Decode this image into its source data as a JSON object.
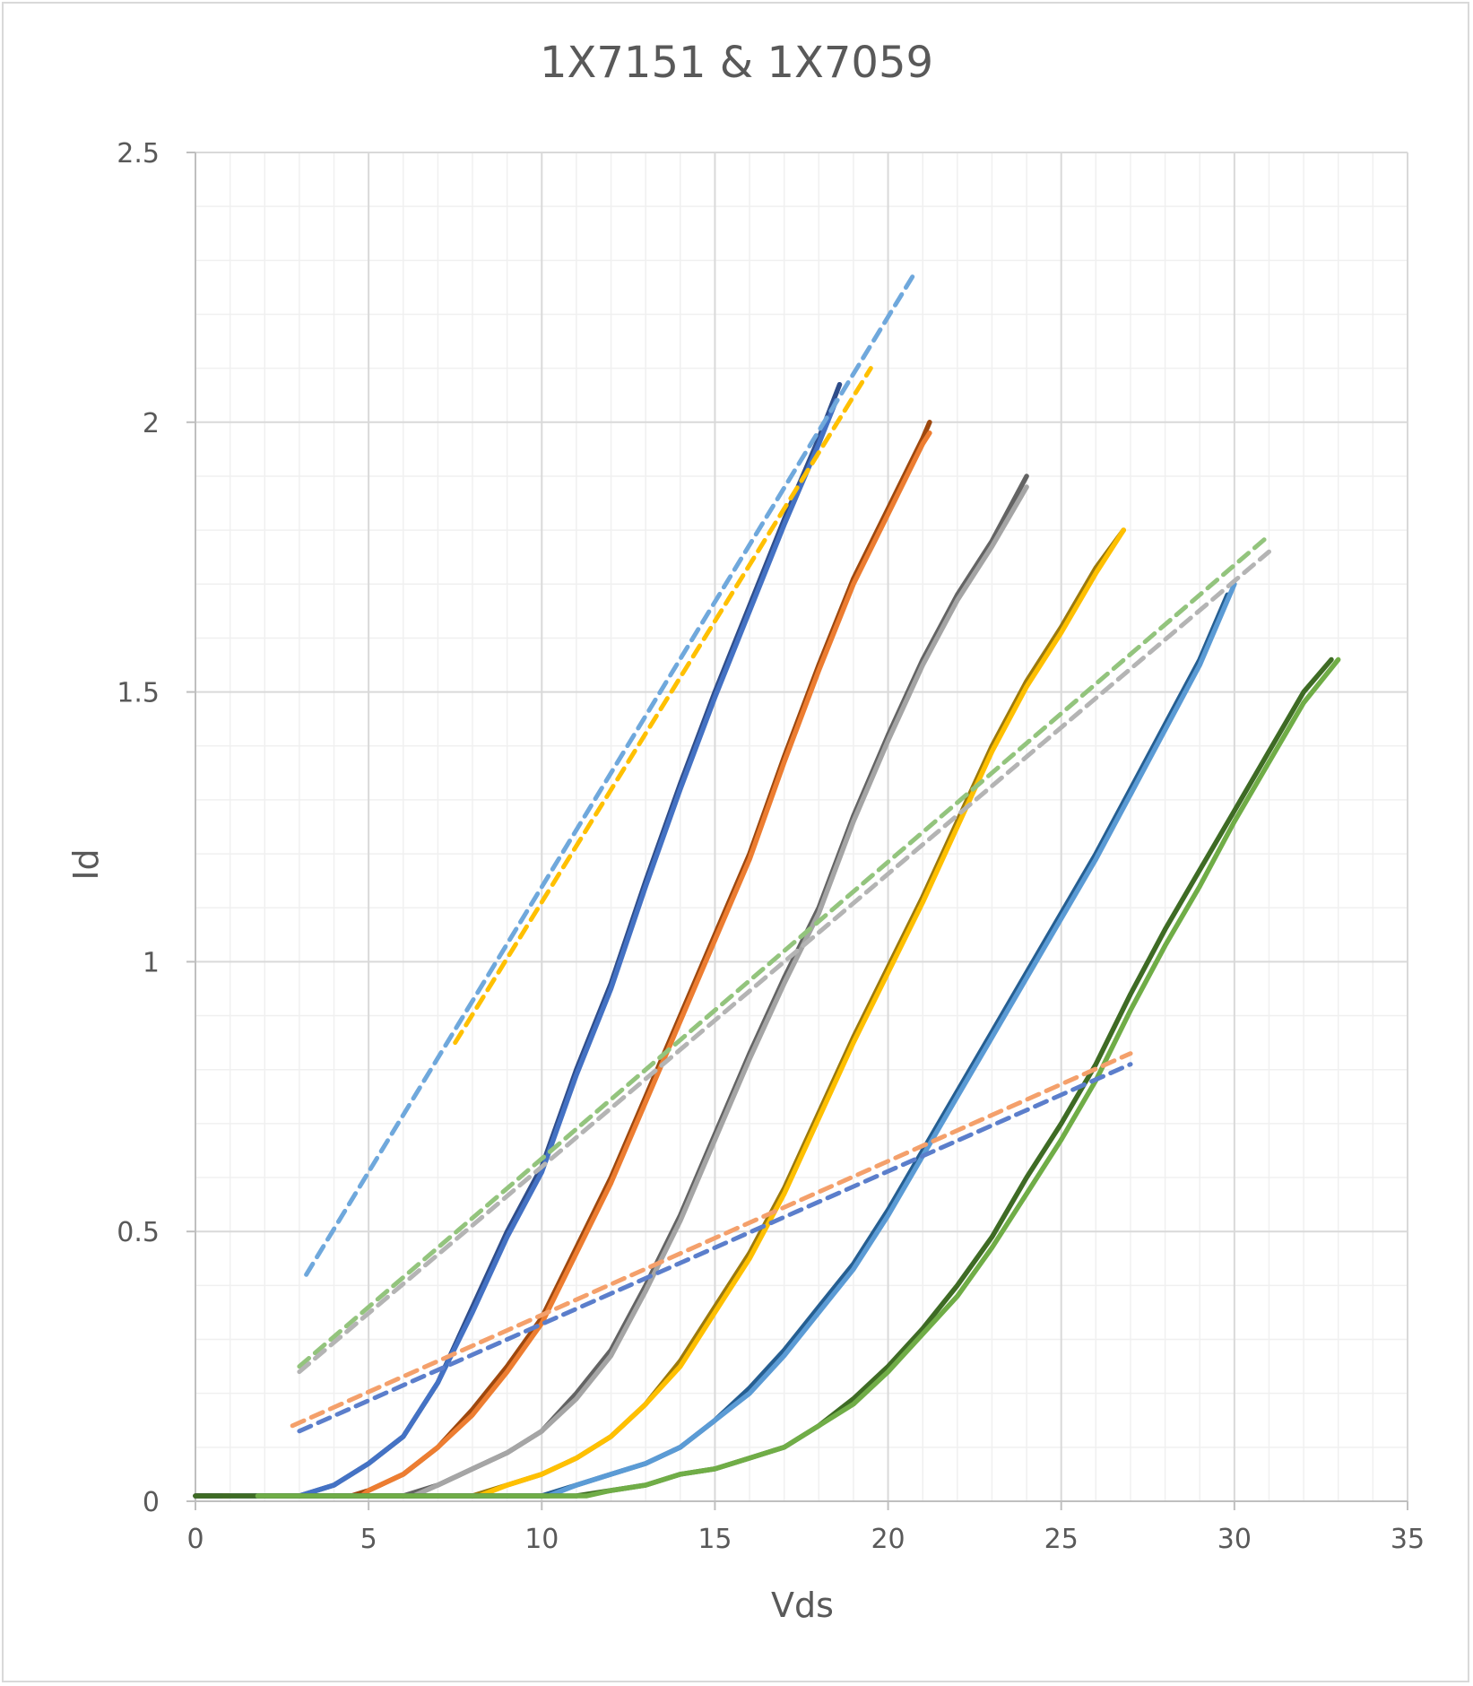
{
  "chart_data": {
    "type": "line",
    "title": "1X7151 & 1X7059",
    "xlabel": "Vds",
    "ylabel": "Id",
    "xlim": [
      0,
      35
    ],
    "ylim": [
      0,
      2.5
    ],
    "xticks": [
      "0",
      "5",
      "10",
      "15",
      "20",
      "25",
      "30",
      "35"
    ],
    "yticks": [
      "0",
      "0.5",
      "1",
      "1.5",
      "2",
      "2.5"
    ],
    "grid": true,
    "legend": "none",
    "series": [
      {
        "color": "#2f4d8a",
        "dash": false,
        "points": [
          [
            0,
            0.01
          ],
          [
            3,
            0.01
          ],
          [
            4,
            0.03
          ],
          [
            5,
            0.07
          ],
          [
            6,
            0.12
          ],
          [
            7,
            0.22
          ],
          [
            8,
            0.36
          ],
          [
            9,
            0.5
          ],
          [
            10,
            0.62
          ],
          [
            11,
            0.8
          ],
          [
            12,
            0.96
          ],
          [
            13,
            1.15
          ],
          [
            14,
            1.33
          ],
          [
            15,
            1.5
          ],
          [
            16,
            1.66
          ],
          [
            17,
            1.82
          ],
          [
            18,
            1.97
          ],
          [
            18.6,
            2.07
          ]
        ]
      },
      {
        "color": "#4472c4",
        "dash": false,
        "points": [
          [
            1,
            0.01
          ],
          [
            3,
            0.01
          ],
          [
            4,
            0.03
          ],
          [
            5,
            0.07
          ],
          [
            6,
            0.12
          ],
          [
            7,
            0.22
          ],
          [
            8,
            0.35
          ],
          [
            9,
            0.49
          ],
          [
            10,
            0.61
          ],
          [
            11,
            0.79
          ],
          [
            12,
            0.95
          ],
          [
            13,
            1.14
          ],
          [
            14,
            1.32
          ],
          [
            15,
            1.49
          ],
          [
            16,
            1.65
          ],
          [
            17,
            1.81
          ],
          [
            18,
            1.96
          ],
          [
            18.5,
            2.04
          ]
        ]
      },
      {
        "color": "#9e480e",
        "dash": false,
        "points": [
          [
            0,
            0.01
          ],
          [
            4.5,
            0.01
          ],
          [
            5,
            0.02
          ],
          [
            6,
            0.05
          ],
          [
            7,
            0.1
          ],
          [
            8,
            0.17
          ],
          [
            9,
            0.25
          ],
          [
            10,
            0.34
          ],
          [
            11,
            0.47
          ],
          [
            12,
            0.6
          ],
          [
            13,
            0.75
          ],
          [
            14,
            0.9
          ],
          [
            15,
            1.05
          ],
          [
            16,
            1.2
          ],
          [
            17,
            1.38
          ],
          [
            18,
            1.55
          ],
          [
            19,
            1.71
          ],
          [
            20,
            1.84
          ],
          [
            21,
            1.97
          ],
          [
            21.2,
            2.0
          ]
        ]
      },
      {
        "color": "#ed7d31",
        "dash": false,
        "points": [
          [
            0.5,
            0.01
          ],
          [
            4.8,
            0.01
          ],
          [
            5,
            0.02
          ],
          [
            6,
            0.05
          ],
          [
            7,
            0.1
          ],
          [
            8,
            0.16
          ],
          [
            9,
            0.24
          ],
          [
            10,
            0.33
          ],
          [
            11,
            0.46
          ],
          [
            12,
            0.59
          ],
          [
            13,
            0.74
          ],
          [
            14,
            0.89
          ],
          [
            15,
            1.04
          ],
          [
            16,
            1.19
          ],
          [
            17,
            1.37
          ],
          [
            18,
            1.54
          ],
          [
            19,
            1.7
          ],
          [
            20,
            1.83
          ],
          [
            21,
            1.96
          ],
          [
            21.2,
            1.98
          ]
        ]
      },
      {
        "color": "#636363",
        "dash": false,
        "points": [
          [
            0,
            0.01
          ],
          [
            6,
            0.01
          ],
          [
            7,
            0.03
          ],
          [
            8,
            0.06
          ],
          [
            9,
            0.09
          ],
          [
            10,
            0.13
          ],
          [
            11,
            0.2
          ],
          [
            12,
            0.28
          ],
          [
            13,
            0.4
          ],
          [
            14,
            0.53
          ],
          [
            15,
            0.68
          ],
          [
            16,
            0.83
          ],
          [
            17,
            0.97
          ],
          [
            18,
            1.1
          ],
          [
            19,
            1.27
          ],
          [
            20,
            1.42
          ],
          [
            21,
            1.56
          ],
          [
            22,
            1.68
          ],
          [
            23,
            1.78
          ],
          [
            24,
            1.9
          ]
        ]
      },
      {
        "color": "#a5a5a5",
        "dash": false,
        "points": [
          [
            0.5,
            0.01
          ],
          [
            6.3,
            0.01
          ],
          [
            7,
            0.03
          ],
          [
            8,
            0.06
          ],
          [
            9,
            0.09
          ],
          [
            10,
            0.13
          ],
          [
            11,
            0.19
          ],
          [
            12,
            0.27
          ],
          [
            13,
            0.39
          ],
          [
            14,
            0.52
          ],
          [
            15,
            0.67
          ],
          [
            16,
            0.82
          ],
          [
            17,
            0.96
          ],
          [
            18,
            1.09
          ],
          [
            19,
            1.26
          ],
          [
            20,
            1.41
          ],
          [
            21,
            1.55
          ],
          [
            22,
            1.67
          ],
          [
            23,
            1.77
          ],
          [
            24,
            1.88
          ]
        ]
      },
      {
        "color": "#9c7a0c",
        "dash": false,
        "points": [
          [
            0,
            0.01
          ],
          [
            8,
            0.01
          ],
          [
            9,
            0.03
          ],
          [
            10,
            0.05
          ],
          [
            11,
            0.08
          ],
          [
            12,
            0.12
          ],
          [
            13,
            0.18
          ],
          [
            14,
            0.26
          ],
          [
            15,
            0.36
          ],
          [
            16,
            0.46
          ],
          [
            17,
            0.58
          ],
          [
            18,
            0.72
          ],
          [
            19,
            0.86
          ],
          [
            20,
            0.99
          ],
          [
            21,
            1.12
          ],
          [
            22,
            1.26
          ],
          [
            23,
            1.4
          ],
          [
            24,
            1.52
          ],
          [
            25,
            1.62
          ],
          [
            26,
            1.73
          ],
          [
            26.8,
            1.8
          ]
        ]
      },
      {
        "color": "#ffc000",
        "dash": false,
        "points": [
          [
            0.8,
            0.01
          ],
          [
            8.2,
            0.01
          ],
          [
            9,
            0.03
          ],
          [
            10,
            0.05
          ],
          [
            11,
            0.08
          ],
          [
            12,
            0.12
          ],
          [
            13,
            0.18
          ],
          [
            14,
            0.25
          ],
          [
            15,
            0.35
          ],
          [
            16,
            0.45
          ],
          [
            17,
            0.57
          ],
          [
            18,
            0.71
          ],
          [
            19,
            0.85
          ],
          [
            20,
            0.98
          ],
          [
            21,
            1.11
          ],
          [
            22,
            1.25
          ],
          [
            23,
            1.39
          ],
          [
            24,
            1.51
          ],
          [
            25,
            1.61
          ],
          [
            26,
            1.72
          ],
          [
            26.8,
            1.8
          ]
        ]
      },
      {
        "color": "#255e91",
        "dash": false,
        "points": [
          [
            0,
            0.01
          ],
          [
            10,
            0.01
          ],
          [
            11,
            0.03
          ],
          [
            12,
            0.05
          ],
          [
            13,
            0.07
          ],
          [
            14,
            0.1
          ],
          [
            15,
            0.15
          ],
          [
            16,
            0.21
          ],
          [
            17,
            0.28
          ],
          [
            18,
            0.36
          ],
          [
            19,
            0.44
          ],
          [
            20,
            0.54
          ],
          [
            21,
            0.65
          ],
          [
            22,
            0.76
          ],
          [
            23,
            0.87
          ],
          [
            24,
            0.98
          ],
          [
            25,
            1.09
          ],
          [
            26,
            1.2
          ],
          [
            27,
            1.32
          ],
          [
            28,
            1.44
          ],
          [
            29,
            1.56
          ],
          [
            29.8,
            1.68
          ]
        ]
      },
      {
        "color": "#5b9bd5",
        "dash": false,
        "points": [
          [
            1,
            0.01
          ],
          [
            10.2,
            0.01
          ],
          [
            11,
            0.03
          ],
          [
            12,
            0.05
          ],
          [
            13,
            0.07
          ],
          [
            14,
            0.1
          ],
          [
            15,
            0.15
          ],
          [
            16,
            0.2
          ],
          [
            17,
            0.27
          ],
          [
            18,
            0.35
          ],
          [
            19,
            0.43
          ],
          [
            20,
            0.53
          ],
          [
            21,
            0.64
          ],
          [
            22,
            0.75
          ],
          [
            23,
            0.86
          ],
          [
            24,
            0.97
          ],
          [
            25,
            1.08
          ],
          [
            26,
            1.19
          ],
          [
            27,
            1.31
          ],
          [
            28,
            1.43
          ],
          [
            29,
            1.55
          ],
          [
            30,
            1.7
          ]
        ]
      },
      {
        "color": "#3e6b24",
        "dash": false,
        "points": [
          [
            0,
            0.01
          ],
          [
            11,
            0.01
          ],
          [
            12,
            0.02
          ],
          [
            13,
            0.03
          ],
          [
            14,
            0.05
          ],
          [
            15,
            0.06
          ],
          [
            16,
            0.08
          ],
          [
            17,
            0.1
          ],
          [
            18,
            0.14
          ],
          [
            19,
            0.19
          ],
          [
            20,
            0.25
          ],
          [
            21,
            0.32
          ],
          [
            22,
            0.4
          ],
          [
            23,
            0.49
          ],
          [
            24,
            0.6
          ],
          [
            25,
            0.7
          ],
          [
            26,
            0.81
          ],
          [
            27,
            0.94
          ],
          [
            28,
            1.06
          ],
          [
            29,
            1.17
          ],
          [
            30,
            1.28
          ],
          [
            31,
            1.39
          ],
          [
            32,
            1.5
          ],
          [
            32.8,
            1.56
          ]
        ]
      },
      {
        "color": "#70ad47",
        "dash": false,
        "points": [
          [
            1.8,
            0.01
          ],
          [
            11.3,
            0.01
          ],
          [
            12,
            0.02
          ],
          [
            13,
            0.03
          ],
          [
            14,
            0.05
          ],
          [
            15,
            0.06
          ],
          [
            16,
            0.08
          ],
          [
            17,
            0.1
          ],
          [
            18,
            0.14
          ],
          [
            19,
            0.18
          ],
          [
            20,
            0.24
          ],
          [
            21,
            0.31
          ],
          [
            22,
            0.38
          ],
          [
            23,
            0.47
          ],
          [
            24,
            0.57
          ],
          [
            25,
            0.67
          ],
          [
            26,
            0.78
          ],
          [
            27,
            0.91
          ],
          [
            28,
            1.03
          ],
          [
            29,
            1.14
          ],
          [
            30,
            1.26
          ],
          [
            31,
            1.37
          ],
          [
            32,
            1.48
          ],
          [
            33,
            1.56
          ]
        ]
      },
      {
        "color": "#6fa8dc",
        "dash": true,
        "points": [
          [
            3.2,
            0.42
          ],
          [
            20.8,
            2.28
          ]
        ]
      },
      {
        "color": "#ffc000",
        "dash": true,
        "points": [
          [
            7.5,
            0.85
          ],
          [
            19.5,
            2.1
          ]
        ]
      },
      {
        "color": "#93c47d",
        "dash": true,
        "points": [
          [
            3,
            0.25
          ],
          [
            31,
            1.79
          ]
        ]
      },
      {
        "color": "#b4b4b4",
        "dash": true,
        "points": [
          [
            3,
            0.24
          ],
          [
            31,
            1.76
          ]
        ]
      },
      {
        "color": "#f4a06b",
        "dash": true,
        "points": [
          [
            2.8,
            0.14
          ],
          [
            27,
            0.83
          ]
        ]
      },
      {
        "color": "#5b7ecb",
        "dash": true,
        "points": [
          [
            3,
            0.13
          ],
          [
            27,
            0.81
          ]
        ]
      }
    ]
  }
}
